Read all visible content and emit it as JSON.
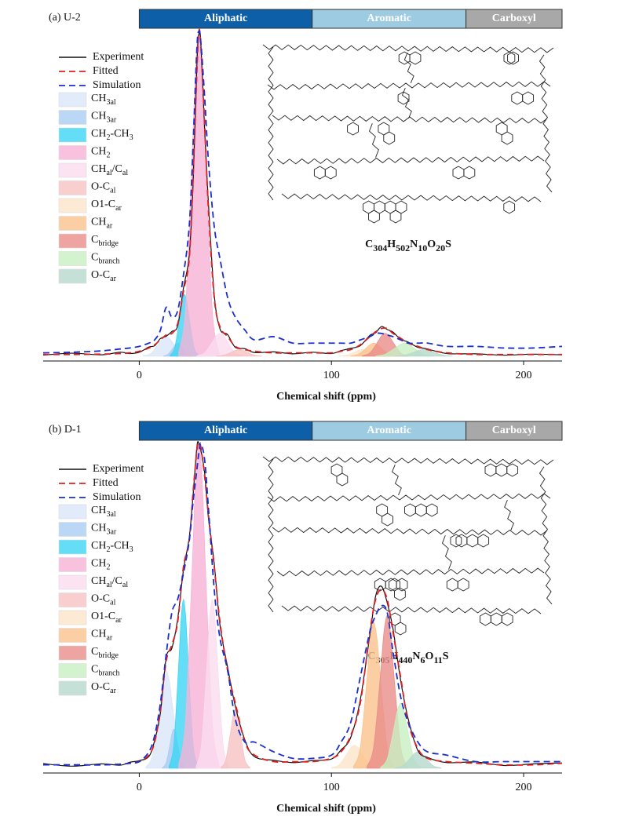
{
  "chart_data": [
    {
      "type": "line",
      "title": "(a) U-2",
      "xlabel": "Chemical shift (ppm)",
      "xlim": [
        -50,
        220
      ],
      "xticks": [
        0,
        100,
        200
      ],
      "ylim": [
        -1.5,
        100
      ],
      "regions": [
        {
          "label": "Aliphatic",
          "range": [
            0,
            90
          ],
          "color": "#0d5fa8",
          "text_color": "#ffffff"
        },
        {
          "label": "Aromatic",
          "range": [
            90,
            170
          ],
          "color": "#9dcbe2",
          "text_color": "#ffffff"
        },
        {
          "label": "Carboxyl",
          "range": [
            170,
            220
          ],
          "color": "#a8a8a8",
          "text_color": "#ffffff"
        }
      ],
      "formula": [
        "C",
        "304",
        "H",
        "502",
        "N",
        "10",
        "O",
        "20",
        "S"
      ],
      "x": [
        -50,
        -35,
        -20,
        -10,
        -5,
        0,
        5,
        8,
        11,
        14,
        17,
        20,
        23,
        26,
        28,
        30,
        31,
        32,
        34,
        36,
        39,
        42,
        46,
        50,
        55,
        60,
        70,
        80,
        90,
        100,
        105,
        110,
        115,
        120,
        123,
        126,
        129,
        132,
        136,
        140,
        145,
        150,
        160,
        175,
        190,
        205,
        220
      ],
      "series": [
        {
          "name": [
            "Experiment"
          ],
          "color": "#111111",
          "style": "solid",
          "values": [
            0.3,
            0.9,
            0.4,
            1.2,
            0.8,
            1.2,
            2.8,
            3.2,
            5.4,
            6.1,
            7.6,
            9.4,
            21,
            31,
            53,
            90,
            99,
            97,
            70,
            47,
            19,
            8.4,
            6.6,
            2.7,
            2.3,
            1.1,
            1.3,
            0.7,
            1.2,
            0.8,
            1.7,
            2.4,
            3.2,
            6.4,
            7.2,
            9.1,
            8.2,
            7.4,
            5.2,
            4.3,
            2.7,
            2.2,
            0.8,
            0.7,
            0.3,
            0.6,
            0.4
          ]
        },
        {
          "name": [
            "Fitted"
          ],
          "color": "#e02020",
          "style": "dashed",
          "values": [
            0.5,
            0.5,
            0.6,
            0.8,
            1,
            1.5,
            2.5,
            3.5,
            5,
            6.5,
            7,
            10,
            20,
            30,
            55,
            88,
            100,
            96,
            72,
            45,
            18,
            9,
            6,
            3,
            2,
            1.5,
            1,
            1,
            1,
            1,
            1.5,
            2,
            3.5,
            6,
            7.5,
            8.5,
            8.5,
            7,
            5.5,
            4,
            3,
            2,
            1,
            0.5,
            0.5,
            0.5,
            0.5
          ]
        },
        {
          "name": [
            "Simulation"
          ],
          "color": "#1a2fd0",
          "style": "dashed",
          "values": [
            1,
            1.2,
            1.6,
            2.2,
            2.5,
            3,
            4,
            5,
            8,
            15,
            12,
            14,
            25,
            40,
            65,
            95,
            100,
            97,
            80,
            60,
            40,
            30,
            18,
            12,
            8,
            5,
            6,
            4,
            4,
            4,
            4,
            4,
            5,
            6,
            7,
            7,
            6.5,
            6,
            5,
            4,
            4,
            4,
            3,
            3,
            2.5,
            2.5,
            3
          ]
        }
      ],
      "components": [
        {
          "name": [
            "CH",
            "3al"
          ],
          "color": "#dbe6f8",
          "x": [
            2,
            6,
            10,
            12,
            14,
            16,
            18,
            22,
            26
          ],
          "values": [
            0.1,
            0.8,
            3.7,
            5.3,
            6,
            5.3,
            3.7,
            0.8,
            0.1
          ]
        },
        {
          "name": [
            "CH",
            "3ar"
          ],
          "color": "#a9cdf3",
          "x": [
            12.5,
            15,
            17.5,
            18.75,
            20,
            21.25,
            22.5,
            25,
            27.5
          ],
          "values": [
            0,
            0.6,
            2.4,
            3.5,
            4,
            3.5,
            2.4,
            0.6,
            0
          ]
        },
        {
          "name": [
            " CH",
            "2",
            "-CH",
            "3"
          ],
          "color": "#3cd6f4",
          "x": [
            16,
            18.5,
            21,
            22.25,
            23.5,
            24.75,
            26,
            28.5,
            31
          ],
          "values": [
            0.2,
            2.7,
            11.6,
            16.7,
            19,
            16.7,
            11.6,
            2.7,
            0.2
          ]
        },
        {
          "name": [
            "CH",
            "2"
          ],
          "color": "#f6b3d7",
          "x": [
            20.5,
            24,
            27.5,
            29.25,
            31,
            32.75,
            34.5,
            38,
            41.5
          ],
          "values": [
            1,
            14,
            61,
            88,
            100,
            88,
            61,
            14,
            1
          ]
        },
        {
          "name": [
            "CH",
            "al",
            "/C",
            "al"
          ],
          "color": "#fadcef",
          "x": [
            30,
            34,
            38,
            40,
            42,
            44,
            46,
            50,
            54
          ],
          "values": [
            0.1,
            1,
            4.3,
            6.2,
            7,
            6.2,
            4.3,
            1,
            0.1
          ]
        },
        {
          "name": [
            "O-C",
            "al"
          ],
          "color": "#f6c2c2",
          "x": [
            40,
            44,
            48,
            50,
            52,
            54,
            56,
            60,
            64
          ],
          "values": [
            0,
            0.3,
            1.2,
            1.8,
            2,
            1.8,
            1.2,
            0.3,
            0
          ]
        },
        {
          "name": [
            "O1-C",
            "ar"
          ],
          "color": "#fde5cb",
          "x": [
            104,
            108,
            112,
            114,
            116,
            118,
            120,
            124,
            128
          ],
          "values": [
            0,
            0.3,
            1.2,
            1.8,
            2,
            1.8,
            1.2,
            0.3,
            0
          ]
        },
        {
          "name": [
            "CH",
            "ar"
          ],
          "color": "#fac38c",
          "x": [
            110,
            114,
            118,
            120,
            122,
            124,
            126,
            130,
            134
          ],
          "values": [
            0,
            0.6,
            2.4,
            3.5,
            4,
            3.5,
            2.4,
            0.6,
            0
          ]
        },
        {
          "name": [
            "C",
            "bridge"
          ],
          "color": "#ea8d88",
          "x": [
            116,
            120,
            124,
            126,
            128,
            130,
            132,
            136,
            140
          ],
          "values": [
            0.1,
            1,
            4.3,
            6.2,
            7,
            6.2,
            4.3,
            1,
            0.1
          ]
        },
        {
          "name": [
            "C",
            "branch"
          ],
          "color": "#c8efc2",
          "x": [
            123,
            128,
            133,
            135.5,
            138,
            140.5,
            143,
            148,
            153
          ],
          "values": [
            0,
            0.6,
            2.4,
            3.5,
            4,
            3.5,
            2.4,
            0.6,
            0
          ]
        },
        {
          "name": [
            "O-C",
            "ar"
          ],
          "color": "#b7dacd",
          "x": [
            133,
            138,
            143,
            145.5,
            148,
            150.5,
            153,
            158,
            163
          ],
          "values": [
            0,
            0.3,
            1.2,
            1.8,
            2,
            1.8,
            1.2,
            0.3,
            0
          ]
        }
      ]
    },
    {
      "type": "line",
      "title": "(b) D-1",
      "xlabel": "Chemical shift (ppm)",
      "xlim": [
        -50,
        220
      ],
      "xticks": [
        0,
        100,
        200
      ],
      "ylim": [
        -1.5,
        100
      ],
      "regions": [
        {
          "label": "Aliphatic",
          "range": [
            0,
            90
          ],
          "color": "#0d5fa8",
          "text_color": "#ffffff"
        },
        {
          "label": "Aromatic",
          "range": [
            90,
            170
          ],
          "color": "#9dcbe2",
          "text_color": "#ffffff"
        },
        {
          "label": "Carboxyl",
          "range": [
            170,
            220
          ],
          "color": "#a8a8a8",
          "text_color": "#ffffff"
        }
      ],
      "formula": [
        "C",
        "305",
        "H",
        "440",
        "N",
        "6",
        "O",
        "11",
        "S"
      ],
      "x": [
        -50,
        -35,
        -20,
        -10,
        -5,
        0,
        5,
        8,
        11,
        14,
        17,
        20,
        23,
        26,
        28,
        30,
        31,
        32,
        34,
        36,
        39,
        42,
        46,
        50,
        55,
        60,
        70,
        80,
        90,
        100,
        105,
        110,
        115,
        120,
        123,
        126,
        129,
        132,
        136,
        140,
        145,
        150,
        160,
        175,
        190,
        205,
        220
      ],
      "series": [
        {
          "name": [
            "Experiment"
          ],
          "color": "#111111",
          "style": "solid",
          "values": [
            1.4,
            0.6,
            1.3,
            0.9,
            1.8,
            2.3,
            3.6,
            8.5,
            17,
            34,
            37,
            46,
            61,
            71,
            84,
            99,
            100,
            98,
            91,
            77,
            63,
            44,
            31,
            19,
            8.6,
            3.5,
            2.4,
            1.7,
            2.3,
            2.8,
            5.6,
            9.4,
            21,
            41,
            53,
            56,
            51,
            43,
            27,
            15,
            5.4,
            3.3,
            1.7,
            1.9,
            0.8,
            1.3,
            1.6
          ]
        },
        {
          "name": [
            "Fitted"
          ],
          "color": "#e02020",
          "style": "dashed",
          "values": [
            1,
            1,
            1,
            1.2,
            1.5,
            2,
            4,
            8,
            18,
            33,
            38,
            45,
            62,
            70,
            85,
            98,
            100,
            99,
            90,
            78,
            62,
            45,
            30,
            20,
            8,
            4,
            2,
            2,
            2,
            3,
            5,
            10,
            20,
            42,
            52,
            55,
            52,
            42,
            28,
            14,
            6,
            3,
            2,
            1.5,
            1,
            1,
            1.5
          ]
        },
        {
          "name": [
            "Simulation"
          ],
          "color": "#1a2fd0",
          "style": "dashed",
          "values": [
            1,
            1,
            1,
            1.2,
            1.5,
            2,
            5,
            10,
            20,
            35,
            48,
            52,
            60,
            70,
            82,
            92,
            97,
            100,
            95,
            80,
            55,
            40,
            30,
            15,
            8,
            8,
            5,
            3,
            3,
            4,
            8,
            14,
            28,
            42,
            47,
            50,
            48,
            36,
            22,
            14,
            8,
            5,
            4,
            2,
            2,
            2,
            2
          ]
        }
      ],
      "components": [
        {
          "name": [
            "CH",
            "3al"
          ],
          "color": "#dbe6f8",
          "x": [
            3.5,
            7,
            10.5,
            12.25,
            14,
            15.75,
            17.5,
            21,
            24.5
          ],
          "values": [
            0.3,
            4.2,
            18.3,
            26.4,
            30,
            26.4,
            18.3,
            4.2,
            0.3
          ]
        },
        {
          "name": [
            "CH",
            "3ar"
          ],
          "color": "#a9cdf3",
          "x": [
            12,
            14,
            16,
            17,
            18,
            19,
            20,
            22,
            24
          ],
          "values": [
            0.1,
            1.7,
            7.3,
            10.6,
            12,
            10.6,
            7.3,
            1.7,
            0.1
          ]
        },
        {
          "name": [
            " CH",
            "2",
            "-CH",
            "3"
          ],
          "color": "#3cd6f4",
          "x": [
            15.5,
            18,
            20.5,
            21.75,
            23,
            24.25,
            25.5,
            28,
            30.5
          ],
          "values": [
            0.5,
            7.3,
            31.7,
            45.8,
            52,
            45.8,
            31.7,
            7.3,
            0.5
          ]
        },
        {
          "name": [
            "CH",
            "2"
          ],
          "color": "#f6b3d7",
          "x": [
            20.5,
            24,
            27.5,
            29.25,
            31,
            32.75,
            34.5,
            38,
            41.5
          ],
          "values": [
            1,
            14,
            61,
            88,
            100,
            88,
            61,
            14,
            1
          ]
        },
        {
          "name": [
            "CH",
            "al",
            "/C",
            "al"
          ],
          "color": "#fadcef",
          "x": [
            29.6,
            32.4,
            35.2,
            36.6,
            38,
            39.4,
            40.8,
            43.6,
            46.4
          ],
          "values": [
            0.5,
            7.3,
            31.7,
            45.8,
            52,
            45.8,
            31.7,
            7.3,
            0.5
          ]
        },
        {
          "name": [
            "O-C",
            "al"
          ],
          "color": "#f6c2c2",
          "x": [
            42.5,
            45,
            47.5,
            48.75,
            50,
            51.25,
            52.5,
            55,
            57.5
          ],
          "values": [
            0.2,
            2.5,
            11,
            15.8,
            18,
            15.8,
            11,
            2.5,
            0.2
          ]
        },
        {
          "name": [
            "O1-C",
            "ar"
          ],
          "color": "#fde5cb",
          "x": [
            100,
            104,
            108,
            110,
            112,
            114,
            116,
            120,
            124
          ],
          "values": [
            0.1,
            1,
            4.3,
            6.2,
            7,
            6.2,
            4.3,
            1,
            0.1
          ]
        },
        {
          "name": [
            "CH",
            "ar"
          ],
          "color": "#fac38c",
          "x": [
            111.5,
            115,
            118.5,
            120.25,
            122,
            123.75,
            125.5,
            129,
            132.5
          ],
          "values": [
            0.5,
            6.3,
            27.5,
            39.6,
            45,
            39.6,
            27.5,
            6.3,
            0.5
          ]
        },
        {
          "name": [
            "C",
            "bridge"
          ],
          "color": "#ea8d88",
          "x": [
            118.5,
            122,
            125.5,
            127.25,
            129,
            130.75,
            132.5,
            136,
            139.5
          ],
          "values": [
            0.5,
            6.6,
            28.7,
            41.4,
            47,
            41.4,
            28.7,
            6.6,
            0.5
          ]
        },
        {
          "name": [
            "C",
            "branch"
          ],
          "color": "#c8efc2",
          "x": [
            125.5,
            129,
            132.5,
            134.25,
            136,
            137.75,
            139.5,
            143,
            146.5
          ],
          "values": [
            0.2,
            2.8,
            12.2,
            17.6,
            20,
            17.6,
            12.2,
            2.8,
            0.2
          ]
        },
        {
          "name": [
            "O-C",
            "ar"
          ],
          "color": "#b7dacd",
          "x": [
            133,
            137,
            141,
            143,
            145,
            147,
            149,
            153,
            157
          ],
          "values": [
            0.1,
            0.7,
            3.1,
            4.4,
            5,
            4.4,
            3.1,
            0.7,
            0.1
          ]
        }
      ]
    }
  ]
}
